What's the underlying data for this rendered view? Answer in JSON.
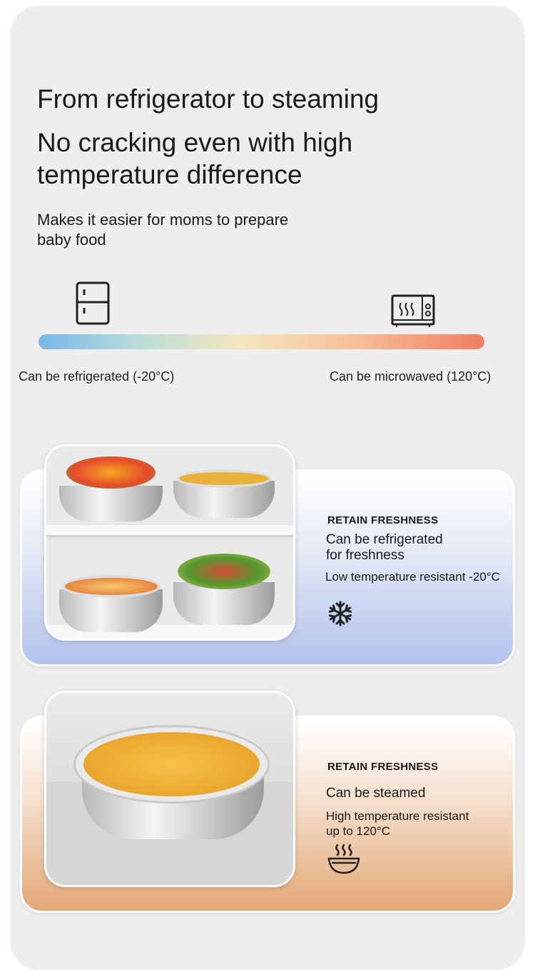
{
  "header": {
    "title_line1": "From refrigerator to steaming",
    "title_line2": "No cracking even with high",
    "title_line3": "temperature difference",
    "subtitle_line1": "Makes it easier for moms to prepare",
    "subtitle_line2": "baby food"
  },
  "scale": {
    "left_icon": "refrigerator-icon",
    "right_icon": "microwave-icon",
    "left_label": "Can be refrigerated (-20°C)",
    "right_label": "Can be microwaved (120°C)",
    "gradient_colors": [
      "#76b6e8",
      "#f4e6bf",
      "#f27d62"
    ]
  },
  "cards": [
    {
      "kicker": "RETAIN FRESHNESS",
      "title_line1": "Can be refrigerated",
      "title_line2": "for freshness",
      "detail": "Low temperature resistant -20°C",
      "icon": "snowflake-icon",
      "accent": "#b2c2ec"
    },
    {
      "kicker": "RETAIN FRESHNESS",
      "title_line1": "Can be steamed",
      "detail_line1": "High temperature resistant",
      "detail_line2": "up to 120°C",
      "icon": "steaming-bowl-icon",
      "accent": "#e3a877"
    }
  ]
}
